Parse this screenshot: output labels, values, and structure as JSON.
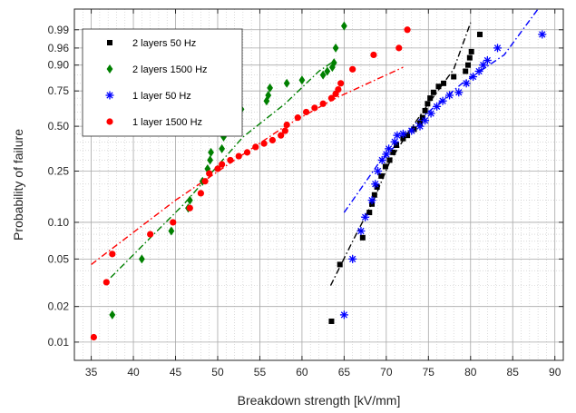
{
  "chart_data": {
    "type": "scatter",
    "title": "",
    "xlabel": "Breakdown strength [kV/mm]",
    "ylabel": "Probability of failure",
    "xlim": [
      33,
      91
    ],
    "ylim": [
      0.007,
      0.999
    ],
    "yscale": "weibull",
    "x_ticks": [
      35,
      40,
      45,
      50,
      55,
      60,
      65,
      70,
      75,
      80,
      85,
      90
    ],
    "x_minor_step": 1,
    "y_ticks": [
      0.01,
      0.02,
      0.05,
      0.1,
      0.25,
      0.5,
      0.75,
      0.9,
      0.96,
      0.99
    ],
    "y_tick_labels": [
      "0.01",
      "0.02",
      "0.05",
      "0.10",
      "0.25",
      "0.50",
      "0.75",
      "0.90",
      "0.96",
      "0.99"
    ],
    "y_minor": [
      0.03,
      0.04,
      0.06,
      0.07,
      0.08,
      0.09,
      0.15,
      0.2,
      0.3,
      0.35,
      0.4,
      0.45,
      0.55,
      0.6,
      0.65,
      0.7,
      0.8,
      0.85
    ],
    "grid": true,
    "legend_position": "top-left",
    "series": [
      {
        "name": "2 layers 50 Hz",
        "marker": "square",
        "color": "#000000",
        "points": [
          [
            63.5,
            0.015
          ],
          [
            64.5,
            0.045
          ],
          [
            67.2,
            0.075
          ],
          [
            68.0,
            0.12
          ],
          [
            68.3,
            0.14
          ],
          [
            68.6,
            0.165
          ],
          [
            68.9,
            0.19
          ],
          [
            69.4,
            0.23
          ],
          [
            69.9,
            0.27
          ],
          [
            70.4,
            0.3
          ],
          [
            70.8,
            0.34
          ],
          [
            71.2,
            0.38
          ],
          [
            72.0,
            0.42
          ],
          [
            72.5,
            0.44
          ],
          [
            73.3,
            0.48
          ],
          [
            74.0,
            0.52
          ],
          [
            74.3,
            0.56
          ],
          [
            74.6,
            0.61
          ],
          [
            74.9,
            0.66
          ],
          [
            75.2,
            0.7
          ],
          [
            75.6,
            0.74
          ],
          [
            76.2,
            0.78
          ],
          [
            76.8,
            0.8
          ],
          [
            78.0,
            0.84
          ],
          [
            79.4,
            0.87
          ],
          [
            79.7,
            0.9
          ],
          [
            79.9,
            0.93
          ],
          [
            80.1,
            0.95
          ],
          [
            81.1,
            0.985
          ]
        ],
        "fit": {
          "color": "#000000",
          "points": [
            [
              63.4,
              0.03
            ],
            [
              66,
              0.07
            ],
            [
              68.5,
              0.15
            ],
            [
              70.5,
              0.3
            ],
            [
              72.5,
              0.45
            ],
            [
              75,
              0.66
            ],
            [
              78,
              0.88
            ],
            [
              80,
              0.995
            ]
          ]
        }
      },
      {
        "name": "2 layers 1500 Hz",
        "marker": "diamond",
        "color": "#008000",
        "points": [
          [
            37.5,
            0.017
          ],
          [
            41.0,
            0.05
          ],
          [
            44.5,
            0.085
          ],
          [
            46.5,
            0.13
          ],
          [
            46.7,
            0.15
          ],
          [
            48.2,
            0.21
          ],
          [
            48.8,
            0.26
          ],
          [
            49.1,
            0.3
          ],
          [
            49.2,
            0.34
          ],
          [
            50.5,
            0.36
          ],
          [
            50.7,
            0.43
          ],
          [
            50.8,
            0.46
          ],
          [
            51.0,
            0.49
          ],
          [
            52.0,
            0.53
          ],
          [
            52.3,
            0.58
          ],
          [
            52.8,
            0.62
          ],
          [
            55.8,
            0.68
          ],
          [
            56.0,
            0.72
          ],
          [
            56.2,
            0.77
          ],
          [
            58.2,
            0.8
          ],
          [
            60.0,
            0.82
          ],
          [
            62.5,
            0.85
          ],
          [
            63.0,
            0.87
          ],
          [
            63.6,
            0.89
          ],
          [
            63.8,
            0.91
          ],
          [
            64.0,
            0.96
          ],
          [
            65.0,
            0.993
          ]
        ],
        "fit": {
          "color": "#008000",
          "points": [
            [
              37.3,
              0.035
            ],
            [
              46,
              0.14
            ],
            [
              53,
              0.43
            ],
            [
              58,
              0.66
            ],
            [
              62,
              0.87
            ],
            [
              63.5,
              0.91
            ]
          ]
        }
      },
      {
        "name": "1 layer 50 Hz",
        "marker": "asterisk",
        "color": "#0000ff",
        "points": [
          [
            65.0,
            0.017
          ],
          [
            66.0,
            0.05
          ],
          [
            67.0,
            0.085
          ],
          [
            67.5,
            0.11
          ],
          [
            68.3,
            0.15
          ],
          [
            68.7,
            0.2
          ],
          [
            69.0,
            0.25
          ],
          [
            69.5,
            0.3
          ],
          [
            70.0,
            0.33
          ],
          [
            70.3,
            0.36
          ],
          [
            71.0,
            0.4
          ],
          [
            71.3,
            0.44
          ],
          [
            72.0,
            0.45
          ],
          [
            73.0,
            0.47
          ],
          [
            74.0,
            0.5
          ],
          [
            74.6,
            0.54
          ],
          [
            75.3,
            0.59
          ],
          [
            76.0,
            0.64
          ],
          [
            76.7,
            0.68
          ],
          [
            77.5,
            0.72
          ],
          [
            78.6,
            0.74
          ],
          [
            79.5,
            0.8
          ],
          [
            80.3,
            0.84
          ],
          [
            81.0,
            0.87
          ],
          [
            81.5,
            0.9
          ],
          [
            82.0,
            0.92
          ],
          [
            83.2,
            0.96
          ],
          [
            88.5,
            0.985
          ]
        ],
        "fit": {
          "color": "#0000ff",
          "points": [
            [
              65,
              0.12
            ],
            [
              69,
              0.28
            ],
            [
              74,
              0.55
            ],
            [
              79,
              0.8
            ],
            [
              84,
              0.94
            ],
            [
              88,
              0.999
            ]
          ]
        }
      },
      {
        "name": "1 layer 1500 Hz",
        "marker": "circle",
        "color": "#ff0000",
        "points": [
          [
            35.3,
            0.011
          ],
          [
            36.8,
            0.032
          ],
          [
            37.5,
            0.055
          ],
          [
            42.0,
            0.08
          ],
          [
            44.7,
            0.1
          ],
          [
            46.7,
            0.13
          ],
          [
            48.0,
            0.17
          ],
          [
            48.5,
            0.21
          ],
          [
            49.0,
            0.24
          ],
          [
            50.0,
            0.26
          ],
          [
            50.5,
            0.28
          ],
          [
            51.5,
            0.3
          ],
          [
            52.5,
            0.32
          ],
          [
            53.5,
            0.34
          ],
          [
            54.5,
            0.37
          ],
          [
            55.5,
            0.39
          ],
          [
            56.5,
            0.41
          ],
          [
            57.5,
            0.44
          ],
          [
            58.0,
            0.47
          ],
          [
            58.2,
            0.51
          ],
          [
            59.5,
            0.56
          ],
          [
            60.5,
            0.6
          ],
          [
            61.5,
            0.63
          ],
          [
            62.5,
            0.66
          ],
          [
            63.5,
            0.7
          ],
          [
            64.0,
            0.73
          ],
          [
            64.3,
            0.76
          ],
          [
            64.6,
            0.8
          ],
          [
            66.0,
            0.88
          ],
          [
            68.5,
            0.94
          ],
          [
            71.5,
            0.96
          ],
          [
            72.5,
            0.99
          ]
        ],
        "fit": {
          "color": "#ff0000",
          "points": [
            [
              35,
              0.045
            ],
            [
              45,
              0.15
            ],
            [
              52,
              0.3
            ],
            [
              58,
              0.5
            ],
            [
              64,
              0.7
            ],
            [
              72,
              0.89
            ]
          ]
        }
      }
    ]
  }
}
